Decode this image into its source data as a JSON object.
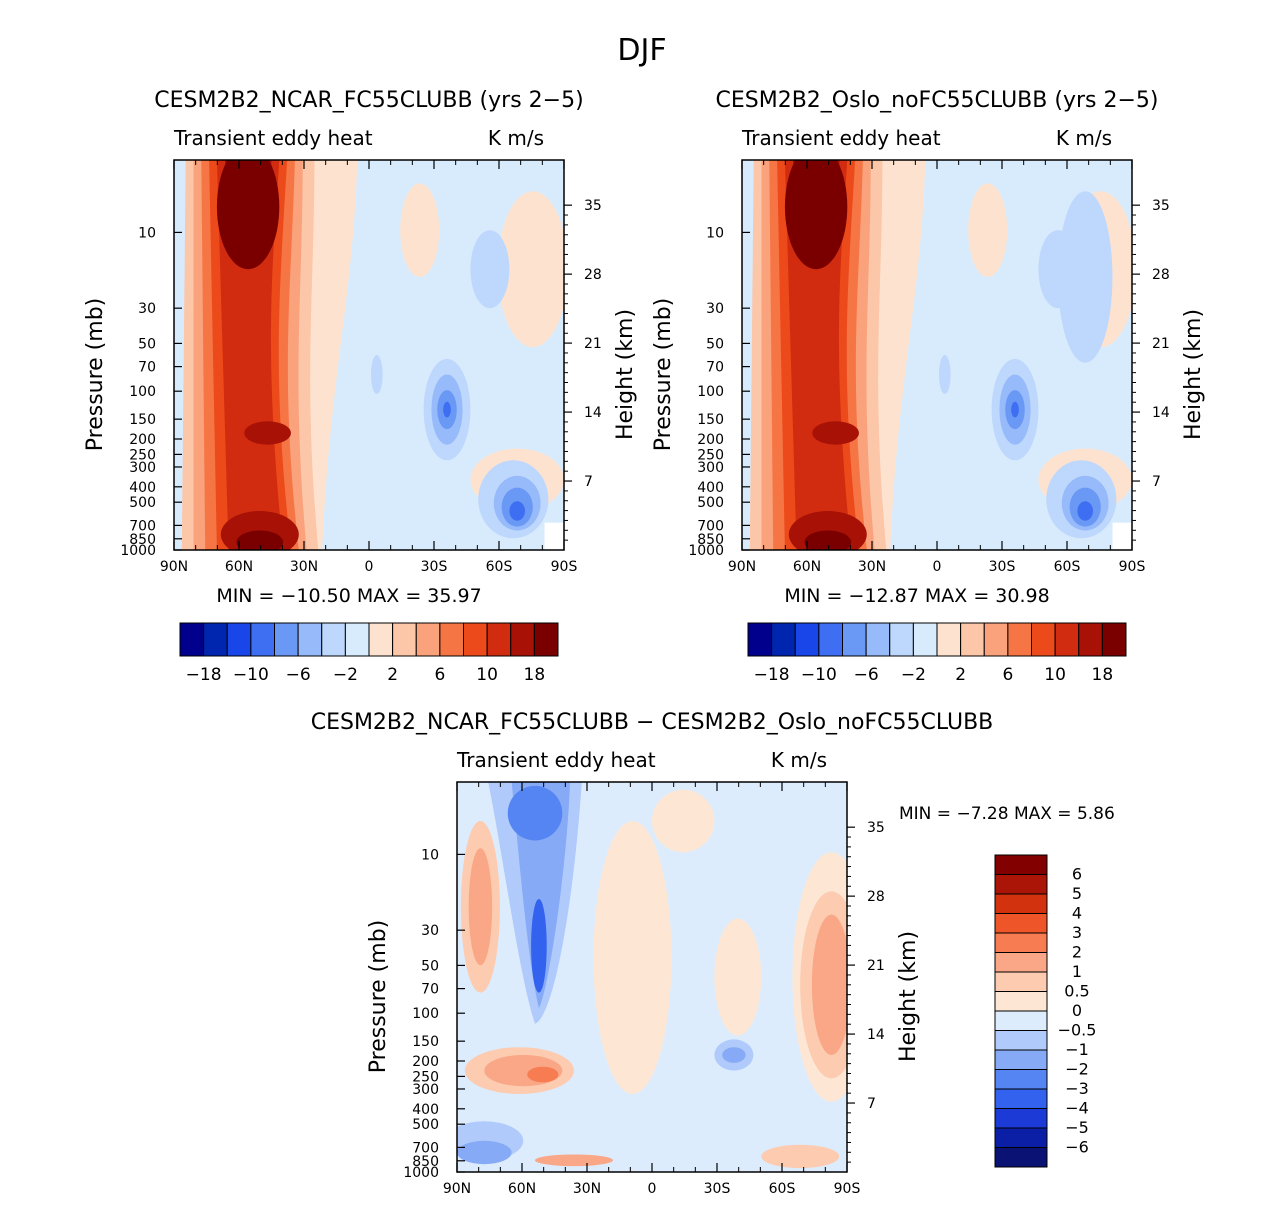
{
  "figure": {
    "season": "DJF"
  },
  "colors": {
    "panel_scale": [
      "#00008c",
      "#0026b0",
      "#1846e8",
      "#3e6ff2",
      "#6a98f5",
      "#96bafa",
      "#bed7fc",
      "#d8ebfd",
      "#fde3cf",
      "#fcc6a8",
      "#f9a27c",
      "#f67544",
      "#ec4a1a",
      "#d12c10",
      "#a71106",
      "#7a0000"
    ],
    "diff_scale": [
      "#0a1273",
      "#0b1fa6",
      "#1b3ad6",
      "#3262ee",
      "#5585f2",
      "#86aaf6",
      "#b0cbfb",
      "#ddecfd",
      "#fde7d4",
      "#fccbb0",
      "#f9a786",
      "#f77c52",
      "#ee5529",
      "#d2320e",
      "#ab1508",
      "#820000"
    ]
  },
  "chart_data": [
    {
      "type": "heatmap",
      "name": "panel-ncar",
      "title": "CESM2B2_NCAR_FC55CLUBB (yrs 2−5)",
      "left_label": "Transient eddy heat",
      "right_label": "K m/s",
      "ylabel": "Pressure (mb)",
      "ylabel_right": "Height (km)",
      "x_ticks": [
        "90N",
        "60N",
        "30N",
        "0",
        "30S",
        "60S",
        "90S"
      ],
      "xlim": [
        90,
        -90
      ],
      "pressure_ticks": [
        "10",
        "30",
        "50",
        "70",
        "100",
        "150",
        "200",
        "250",
        "300",
        "400",
        "500",
        "700",
        "850",
        "1000"
      ],
      "height_ticks": [
        "35",
        "28",
        "21",
        "14",
        "7"
      ],
      "ylim_mb": [
        1000,
        3.5
      ],
      "min_max": "MIN = −10.50   MAX =  35.97",
      "colorbar_levels": [
        -18,
        -14,
        -10,
        -8,
        -6,
        -4,
        -2,
        0,
        2,
        4,
        6,
        8,
        10,
        14,
        18
      ],
      "colorbar_labels": [
        "−18",
        "−10",
        "−6",
        "−2",
        "2",
        "6",
        "10",
        "18"
      ]
    },
    {
      "type": "heatmap",
      "name": "panel-oslo",
      "title": "CESM2B2_Oslo_noFC55CLUBB (yrs 2−5)",
      "left_label": "Transient eddy heat",
      "right_label": "K m/s",
      "ylabel": "Pressure (mb)",
      "ylabel_right": "Height (km)",
      "x_ticks": [
        "90N",
        "60N",
        "30N",
        "0",
        "30S",
        "60S",
        "90S"
      ],
      "xlim": [
        90,
        -90
      ],
      "pressure_ticks": [
        "10",
        "30",
        "50",
        "70",
        "100",
        "150",
        "200",
        "250",
        "300",
        "400",
        "500",
        "700",
        "850",
        "1000"
      ],
      "height_ticks": [
        "35",
        "28",
        "21",
        "14",
        "7"
      ],
      "ylim_mb": [
        1000,
        3.5
      ],
      "min_max": "MIN = −12.87   MAX =  30.98",
      "colorbar_levels": [
        -18,
        -14,
        -10,
        -8,
        -6,
        -4,
        -2,
        0,
        2,
        4,
        6,
        8,
        10,
        14,
        18
      ],
      "colorbar_labels": [
        "−18",
        "−10",
        "−6",
        "−2",
        "2",
        "6",
        "10",
        "18"
      ]
    },
    {
      "type": "heatmap",
      "name": "panel-diff",
      "title": "CESM2B2_NCAR_FC55CLUBB − CESM2B2_Oslo_noFC55CLUBB",
      "left_label": "Transient eddy heat",
      "right_label": "K m/s",
      "ylabel": "Pressure (mb)",
      "ylabel_right": "Height (km)",
      "x_ticks": [
        "90N",
        "60N",
        "30N",
        "0",
        "30S",
        "60S",
        "90S"
      ],
      "xlim": [
        90,
        -90
      ],
      "pressure_ticks": [
        "10",
        "30",
        "50",
        "70",
        "100",
        "150",
        "200",
        "250",
        "300",
        "400",
        "500",
        "700",
        "850",
        "1000"
      ],
      "height_ticks": [
        "35",
        "28",
        "21",
        "14",
        "7"
      ],
      "ylim_mb": [
        1000,
        3.5
      ],
      "min_max": "MIN =   −7.28   MAX =    5.86",
      "colorbar_labels": [
        "6",
        "5",
        "4",
        "3",
        "2",
        "1",
        "0.5",
        "0",
        "−0.5",
        "−1",
        "−2",
        "−3",
        "−4",
        "−5",
        "−6"
      ]
    }
  ]
}
